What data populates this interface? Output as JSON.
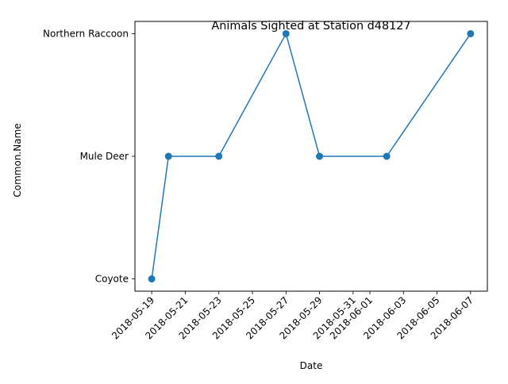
{
  "chart_data": {
    "type": "line",
    "title": "Animals Sighted at Station d48127",
    "xlabel": "Date",
    "ylabel": "Common.Name",
    "y_categories": [
      "Coyote",
      "Mule Deer",
      "Northern Raccoon"
    ],
    "x_ticks": [
      "2018-05-19",
      "2018-05-21",
      "2018-05-23",
      "2018-05-25",
      "2018-05-27",
      "2018-05-29",
      "2018-05-31",
      "2018-06-01",
      "2018-06-03",
      "2018-06-05",
      "2018-06-07"
    ],
    "xlim": [
      "2018-05-18",
      "2018-06-08"
    ],
    "grid": false,
    "legend": "none",
    "series": [
      {
        "color": "#1f77b4",
        "marker": "circle",
        "points": [
          {
            "x": "2018-05-19",
            "y": "Coyote"
          },
          {
            "x": "2018-05-20",
            "y": "Mule Deer"
          },
          {
            "x": "2018-05-23",
            "y": "Mule Deer"
          },
          {
            "x": "2018-05-27",
            "y": "Northern Raccoon"
          },
          {
            "x": "2018-05-29",
            "y": "Mule Deer"
          },
          {
            "x": "2018-06-02",
            "y": "Mule Deer"
          },
          {
            "x": "2018-06-07",
            "y": "Northern Raccoon"
          }
        ]
      }
    ]
  }
}
